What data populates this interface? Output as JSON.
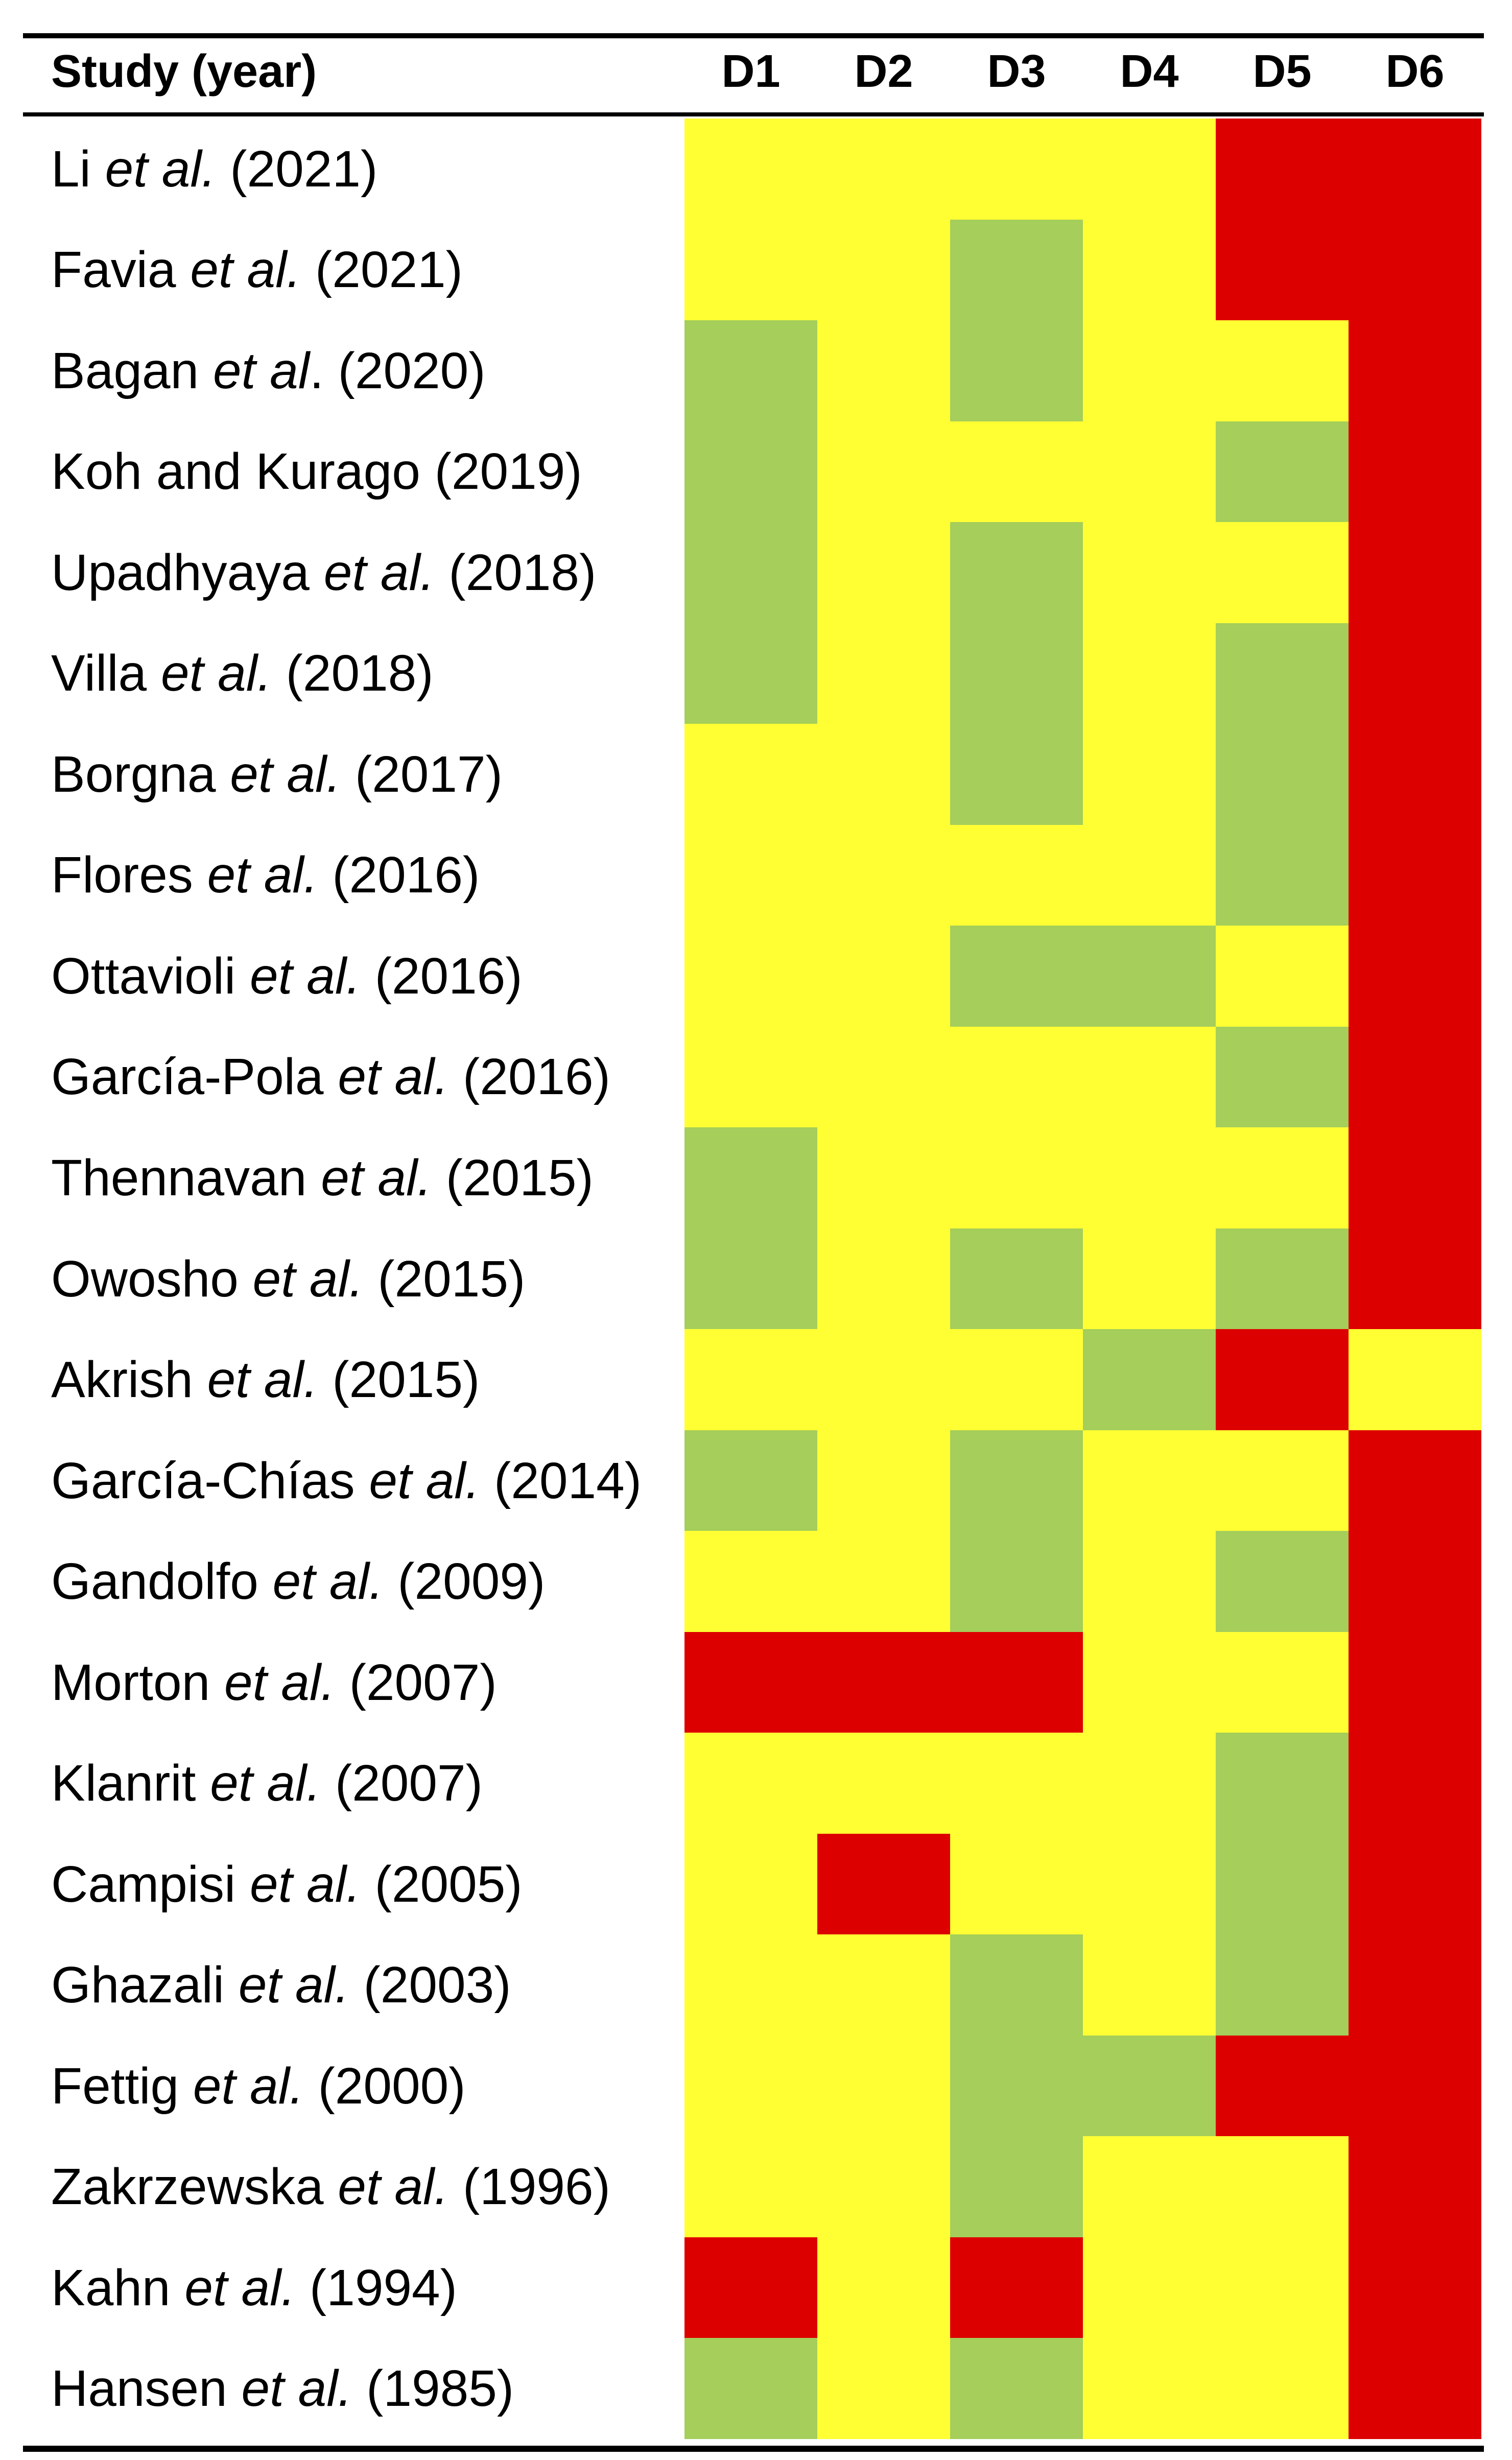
{
  "header": {
    "row_label": "Study (year)",
    "columns": [
      "D1",
      "D2",
      "D3",
      "D4",
      "D5",
      "D6"
    ]
  },
  "colors": {
    "Y": "#ffff33",
    "G": "#a5ce5a",
    "R": "#dd0000"
  },
  "chart_data": {
    "type": "heatmap",
    "title": "",
    "xlabel": "",
    "ylabel": "Study (year)",
    "columns": [
      "D1",
      "D2",
      "D3",
      "D4",
      "D5",
      "D6"
    ],
    "legend_codes": {
      "Y": "yellow",
      "G": "green",
      "R": "red"
    },
    "rows": [
      {
        "pre": "Li ",
        "etal": "et al.",
        "post": " (2021)",
        "cells": [
          "Y",
          "Y",
          "Y",
          "Y",
          "R",
          "R"
        ]
      },
      {
        "pre": "Favia ",
        "etal": "et al.",
        "post": " (2021)",
        "cells": [
          "Y",
          "Y",
          "G",
          "Y",
          "R",
          "R"
        ]
      },
      {
        "pre": "Bagan ",
        "etal": "et al",
        "post": ". (2020)",
        "cells": [
          "G",
          "Y",
          "G",
          "Y",
          "Y",
          "R"
        ]
      },
      {
        "pre": "Koh and Kurago (2019)",
        "etal": "",
        "post": "",
        "cells": [
          "G",
          "Y",
          "Y",
          "Y",
          "G",
          "R"
        ]
      },
      {
        "pre": "Upadhyaya ",
        "etal": "et al.",
        "post": " (2018)",
        "cells": [
          "G",
          "Y",
          "G",
          "Y",
          "Y",
          "R"
        ]
      },
      {
        "pre": "Villa ",
        "etal": "et al.",
        "post": " (2018)",
        "cells": [
          "G",
          "Y",
          "G",
          "Y",
          "G",
          "R"
        ]
      },
      {
        "pre": "Borgna ",
        "etal": "et al.",
        "post": " (2017)",
        "cells": [
          "Y",
          "Y",
          "G",
          "Y",
          "G",
          "R"
        ]
      },
      {
        "pre": "Flores ",
        "etal": "et al.",
        "post": " (2016)",
        "cells": [
          "Y",
          "Y",
          "Y",
          "Y",
          "G",
          "R"
        ]
      },
      {
        "pre": "Ottavioli ",
        "etal": "et al.",
        "post": " (2016)",
        "cells": [
          "Y",
          "Y",
          "G",
          "G",
          "Y",
          "R"
        ]
      },
      {
        "pre": "García-Pola ",
        "etal": "et al.",
        "post": " (2016)",
        "cells": [
          "Y",
          "Y",
          "Y",
          "Y",
          "G",
          "R"
        ]
      },
      {
        "pre": "Thennavan ",
        "etal": "et al.",
        "post": " (2015)",
        "cells": [
          "G",
          "Y",
          "Y",
          "Y",
          "Y",
          "R"
        ]
      },
      {
        "pre": "Owosho ",
        "etal": "et al.",
        "post": " (2015)",
        "cells": [
          "G",
          "Y",
          "G",
          "Y",
          "G",
          "R"
        ]
      },
      {
        "pre": "Akrish ",
        "etal": "et al.",
        "post": " (2015)",
        "cells": [
          "Y",
          "Y",
          "Y",
          "G",
          "R",
          "Y"
        ]
      },
      {
        "pre": "García-Chías ",
        "etal": "et al.",
        "post": " (2014)",
        "cells": [
          "G",
          "Y",
          "G",
          "Y",
          "Y",
          "R"
        ]
      },
      {
        "pre": "Gandolfo ",
        "etal": "et al.",
        "post": " (2009)",
        "cells": [
          "Y",
          "Y",
          "G",
          "Y",
          "G",
          "R"
        ]
      },
      {
        "pre": "Morton ",
        "etal": "et al.",
        "post": " (2007)",
        "cells": [
          "R",
          "R",
          "R",
          "Y",
          "Y",
          "R"
        ]
      },
      {
        "pre": "Klanrit ",
        "etal": "et al.",
        "post": " (2007)",
        "cells": [
          "Y",
          "Y",
          "Y",
          "Y",
          "G",
          "R"
        ]
      },
      {
        "pre": "Campisi ",
        "etal": "et al.",
        "post": " (2005)",
        "cells": [
          "Y",
          "R",
          "Y",
          "Y",
          "G",
          "R"
        ]
      },
      {
        "pre": "Ghazali ",
        "etal": "et al.",
        "post": " (2003)",
        "cells": [
          "Y",
          "Y",
          "G",
          "Y",
          "G",
          "R"
        ]
      },
      {
        "pre": "Fettig ",
        "etal": "et al.",
        "post": " (2000)",
        "cells": [
          "Y",
          "Y",
          "G",
          "G",
          "R",
          "R"
        ]
      },
      {
        "pre": "Zakrzewska ",
        "etal": "et al.",
        "post": " (1996)",
        "cells": [
          "Y",
          "Y",
          "G",
          "Y",
          "Y",
          "R"
        ]
      },
      {
        "pre": "Kahn ",
        "etal": "et al.",
        "post": " (1994)",
        "cells": [
          "R",
          "Y",
          "R",
          "Y",
          "Y",
          "R"
        ]
      },
      {
        "pre": "Hansen ",
        "etal": "et al.",
        "post": " (1985)",
        "cells": [
          "G",
          "Y",
          "G",
          "Y",
          "Y",
          "R"
        ]
      }
    ]
  }
}
